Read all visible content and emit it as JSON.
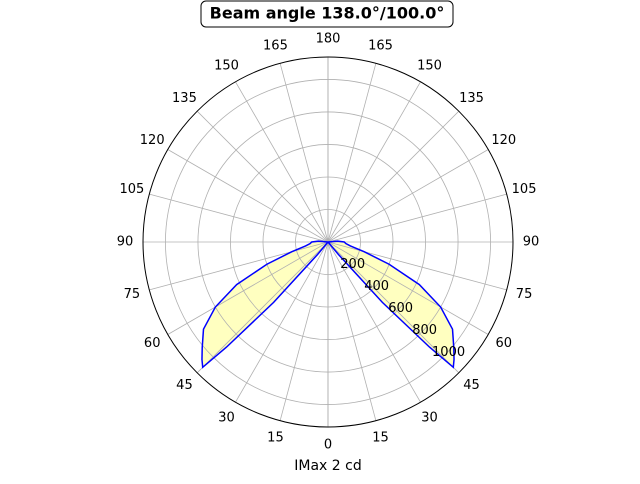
{
  "chart_data": {
    "type": "polar",
    "title": "Beam angle 138.0°/100.0°",
    "xlabel": "IMax 2 cd",
    "x": [
      0,
      35,
      40,
      42,
      44,
      45,
      47,
      50,
      55,
      60,
      65,
      70,
      75,
      80,
      85,
      90,
      95,
      100
    ],
    "series": [
      {
        "color": "#0000ff",
        "fill": "#ffffc0",
        "values": [
          0,
          0,
          100,
          500,
          900,
          1090,
          1060,
          1010,
          935,
          800,
          620,
          400,
          230,
          140,
          110,
          100,
          60,
          0
        ]
      }
    ],
    "rlim": [
      0,
      1138
    ],
    "rticks": [
      200,
      400,
      600,
      800,
      1000
    ],
    "thetaticks": [
      0,
      15,
      30,
      45,
      60,
      75,
      90,
      105,
      120,
      135,
      150,
      165,
      180
    ],
    "grid": true
  }
}
